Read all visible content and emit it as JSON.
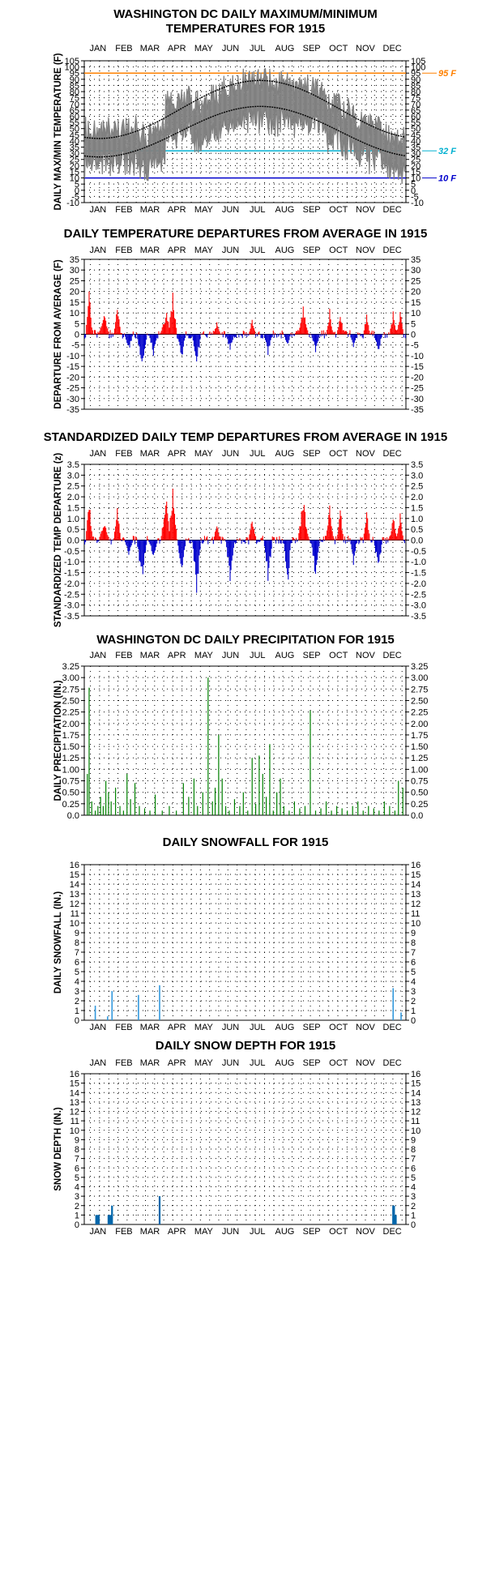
{
  "months": [
    "JAN",
    "FEB",
    "MAR",
    "APR",
    "MAY",
    "JUN",
    "JUL",
    "AUG",
    "SEP",
    "OCT",
    "NOV",
    "DEC"
  ],
  "colors": {
    "max_temp": "#808080",
    "normal_curve": "#000000",
    "above_avg": "#ff0000",
    "below_avg": "#0000cc",
    "precip": "#008000",
    "snowfall": "#3399dd",
    "snow_depth": "#0066aa",
    "ref_95": "#ff8000",
    "ref_32": "#00b0d0",
    "ref_10": "#0000cc"
  },
  "chart_data": [
    {
      "id": "temps",
      "type": "line",
      "title": [
        "WASHINGTON DC DAILY MAXIMUM/MINIMUM",
        "TEMPERATURES FOR 1915"
      ],
      "ylabel": "DAILY MAX/MIN TEMPERATURE (F)",
      "ylim": [
        -10,
        105
      ],
      "yticks": [
        -10,
        -5,
        0,
        5,
        10,
        15,
        20,
        25,
        30,
        35,
        40,
        45,
        50,
        55,
        60,
        65,
        70,
        75,
        80,
        85,
        90,
        95,
        100,
        105
      ],
      "ytick_labels": [
        "-10",
        "-5",
        "0",
        "5",
        "10",
        "15",
        "20",
        "25",
        "30",
        "35",
        "40",
        "45",
        "50",
        "55",
        "60",
        "65",
        "70",
        "75",
        "80",
        "85",
        "90",
        "95",
        "100",
        "105"
      ],
      "months_top": true,
      "months_bottom": true,
      "reference_lines": [
        {
          "value": 95,
          "label": "95 F",
          "color": "#ff8000"
        },
        {
          "value": 32,
          "label": "32 F",
          "color": "#00b0d0"
        },
        {
          "value": 10,
          "label": "10 F",
          "color": "#0000cc"
        }
      ],
      "series_spec": {
        "normal_max": {
          "mean": 65.5,
          "amplitude": 23.5,
          "phase_day": 17
        },
        "normal_min": {
          "mean": 47.5,
          "amplitude": 20.5,
          "phase_day": 17
        },
        "monthly_departure": [
          6,
          3,
          -5,
          10,
          -3,
          0,
          1,
          -1,
          4,
          2,
          0,
          -3
        ]
      }
    },
    {
      "id": "departures",
      "type": "bar",
      "title": [
        "DAILY TEMPERATURE DEPARTURES FROM AVERAGE IN 1915"
      ],
      "ylabel": "DEPARTURE FROM AVERAGE (F)",
      "ylim": [
        -35,
        35
      ],
      "yticks": [
        -35,
        -30,
        -25,
        -20,
        -15,
        -10,
        -5,
        0,
        5,
        10,
        15,
        20,
        25,
        30,
        35
      ],
      "ytick_labels": [
        "-35",
        "-30",
        "-25",
        "-20",
        "-15",
        "-10",
        "-5",
        "0",
        "5",
        "10",
        "15",
        "20",
        "25",
        "30",
        "35"
      ],
      "months_top": true,
      "months_bottom": false,
      "events": [
        [
          5,
          20,
          3
        ],
        [
          22,
          10,
          5
        ],
        [
          37,
          17,
          3
        ],
        [
          50,
          -8,
          4
        ],
        [
          65,
          -16,
          5
        ],
        [
          78,
          -10,
          4
        ],
        [
          93,
          12,
          6
        ],
        [
          100,
          20,
          4
        ],
        [
          110,
          -12,
          4
        ],
        [
          127,
          -16,
          4
        ],
        [
          150,
          6,
          3
        ],
        [
          165,
          -8,
          4
        ],
        [
          190,
          7,
          3
        ],
        [
          208,
          -10,
          4
        ],
        [
          230,
          -6,
          3
        ],
        [
          248,
          13,
          5
        ],
        [
          262,
          -9,
          4
        ],
        [
          278,
          12,
          3
        ],
        [
          290,
          11,
          3
        ],
        [
          305,
          -7,
          3
        ],
        [
          320,
          10,
          3
        ],
        [
          333,
          -9,
          4
        ],
        [
          350,
          11,
          3
        ],
        [
          358,
          12,
          3
        ]
      ]
    },
    {
      "id": "standardized",
      "type": "bar",
      "title": [
        "STANDARDIZED DAILY TEMP DEPARTURES FROM AVERAGE IN 1915"
      ],
      "ylabel": "STANDARDIZED TEMP DEPARTURE (z)",
      "ylim": [
        -3.5,
        3.5
      ],
      "yticks": [
        -3.5,
        -3,
        -2.5,
        -2,
        -1.5,
        -1,
        -0.5,
        0,
        0.5,
        1,
        1.5,
        2,
        2.5,
        3,
        3.5
      ],
      "ytick_labels": [
        "-3.5",
        "-3.0",
        "-2.5",
        "-2.0",
        "-1.5",
        "-1.0",
        "-0.5",
        "0.0",
        "0.5",
        "1.0",
        "1.5",
        "2.0",
        "2.5",
        "3.0",
        "3.5"
      ],
      "months_top": true,
      "months_bottom": false,
      "events": [
        [
          5,
          2.0,
          3
        ],
        [
          22,
          1.0,
          5
        ],
        [
          37,
          1.7,
          3
        ],
        [
          50,
          -0.8,
          4
        ],
        [
          65,
          -2.0,
          5
        ],
        [
          78,
          -1.0,
          4
        ],
        [
          93,
          2.0,
          6
        ],
        [
          100,
          2.6,
          4
        ],
        [
          110,
          -1.5,
          4
        ],
        [
          127,
          -2.6,
          4
        ],
        [
          150,
          1.0,
          3
        ],
        [
          165,
          -2.0,
          4
        ],
        [
          190,
          1.2,
          3
        ],
        [
          208,
          -2.0,
          4
        ],
        [
          230,
          -2.6,
          3
        ],
        [
          248,
          2.0,
          5
        ],
        [
          262,
          -2.0,
          4
        ],
        [
          278,
          2.0,
          3
        ],
        [
          290,
          1.5,
          3
        ],
        [
          305,
          -1.2,
          3
        ],
        [
          320,
          1.5,
          3
        ],
        [
          333,
          -1.5,
          4
        ],
        [
          350,
          1.3,
          3
        ],
        [
          358,
          1.3,
          3
        ]
      ]
    },
    {
      "id": "precip",
      "type": "bar",
      "title": [
        "WASHINGTON DC DAILY PRECIPITATION FOR 1915"
      ],
      "ylabel": "DAILY PRECIPITATION (IN.)",
      "ylim": [
        0,
        3.25
      ],
      "yticks": [
        0,
        0.25,
        0.5,
        0.75,
        1,
        1.25,
        1.5,
        1.75,
        2,
        2.25,
        2.5,
        2.75,
        3,
        3.25
      ],
      "ytick_labels": [
        "0.0",
        "0.25",
        "0.50",
        "0.75",
        "1.00",
        "1.25",
        "1.50",
        "1.75",
        "2.00",
        "2.25",
        "2.50",
        "2.75",
        "3.00",
        "3.25"
      ],
      "months_top": true,
      "months_bottom": false,
      "days": [
        3,
        5,
        8,
        12,
        15,
        18,
        21,
        24,
        27,
        30,
        35,
        40,
        44,
        48,
        52,
        57,
        62,
        68,
        74,
        80,
        88,
        96,
        104,
        112,
        118,
        124,
        128,
        134,
        140,
        145,
        148,
        152,
        156,
        160,
        164,
        170,
        176,
        180,
        185,
        190,
        194,
        198,
        202,
        206,
        210,
        214,
        218,
        222,
        226,
        232,
        238,
        244,
        250,
        256,
        262,
        268,
        274,
        280,
        286,
        292,
        298,
        304,
        310,
        316,
        322,
        328,
        334,
        340,
        346,
        352,
        356,
        361
      ],
      "values": [
        0.9,
        2.78,
        0.3,
        0.1,
        0.2,
        0.4,
        0.2,
        0.75,
        0.5,
        0.3,
        0.6,
        0.2,
        0.1,
        0.9,
        0.35,
        0.7,
        0.2,
        0.15,
        0.1,
        0.45,
        0.1,
        0.2,
        0.1,
        0.7,
        0.4,
        0.8,
        0.2,
        0.5,
        3.0,
        0.3,
        0.6,
        1.75,
        0.8,
        0.2,
        0.1,
        0.35,
        0.2,
        0.5,
        0.1,
        1.25,
        0.25,
        1.3,
        0.9,
        0.4,
        1.55,
        0.1,
        0.5,
        0.8,
        0.2,
        0.1,
        0.3,
        0.15,
        0.2,
        2.28,
        0.1,
        0.15,
        0.3,
        0.1,
        0.2,
        0.15,
        0.1,
        0.2,
        0.3,
        0.1,
        0.2,
        0.15,
        0.1,
        0.3,
        0.2,
        0.1,
        0.75,
        0.6
      ]
    },
    {
      "id": "snowfall",
      "type": "bar",
      "title": [
        "DAILY SNOWFALL FOR 1915"
      ],
      "ylabel": "DAILY SNOWFALL (IN.)",
      "ylim": [
        0,
        16
      ],
      "yticks": [
        0,
        1,
        2,
        3,
        4,
        5,
        6,
        7,
        8,
        9,
        10,
        11,
        12,
        13,
        14,
        15,
        16
      ],
      "ytick_labels": [
        "0",
        "1",
        "2",
        "3",
        "4",
        "5",
        "6",
        "7",
        "8",
        "9",
        "10",
        "11",
        "12",
        "13",
        "14",
        "15",
        "16"
      ],
      "months_top": false,
      "months_bottom": true,
      "days": [
        12,
        26,
        31,
        61,
        85,
        350,
        359
      ],
      "values": [
        1.5,
        0.4,
        3.0,
        2.6,
        3.6,
        3.3,
        0.8
      ]
    },
    {
      "id": "snowdepth",
      "type": "bar",
      "title": [
        "DAILY SNOW DEPTH FOR 1915"
      ],
      "ylabel": "SNOW DEPTH (IN.)",
      "ylim": [
        0,
        16
      ],
      "yticks": [
        0,
        1,
        2,
        3,
        4,
        5,
        6,
        7,
        8,
        9,
        10,
        11,
        12,
        13,
        14,
        15,
        16
      ],
      "ytick_labels": [
        "0",
        "1",
        "2",
        "3",
        "4",
        "5",
        "6",
        "7",
        "8",
        "9",
        "10",
        "11",
        "12",
        "13",
        "14",
        "15",
        "16"
      ],
      "months_top": true,
      "months_bottom": true,
      "days": [
        13,
        14,
        15,
        16,
        27,
        28,
        29,
        30,
        31,
        85,
        350,
        351,
        352,
        353
      ],
      "values": [
        1,
        1,
        1,
        1,
        1,
        1,
        1,
        1,
        2,
        3,
        2,
        2,
        1,
        1
      ]
    }
  ]
}
